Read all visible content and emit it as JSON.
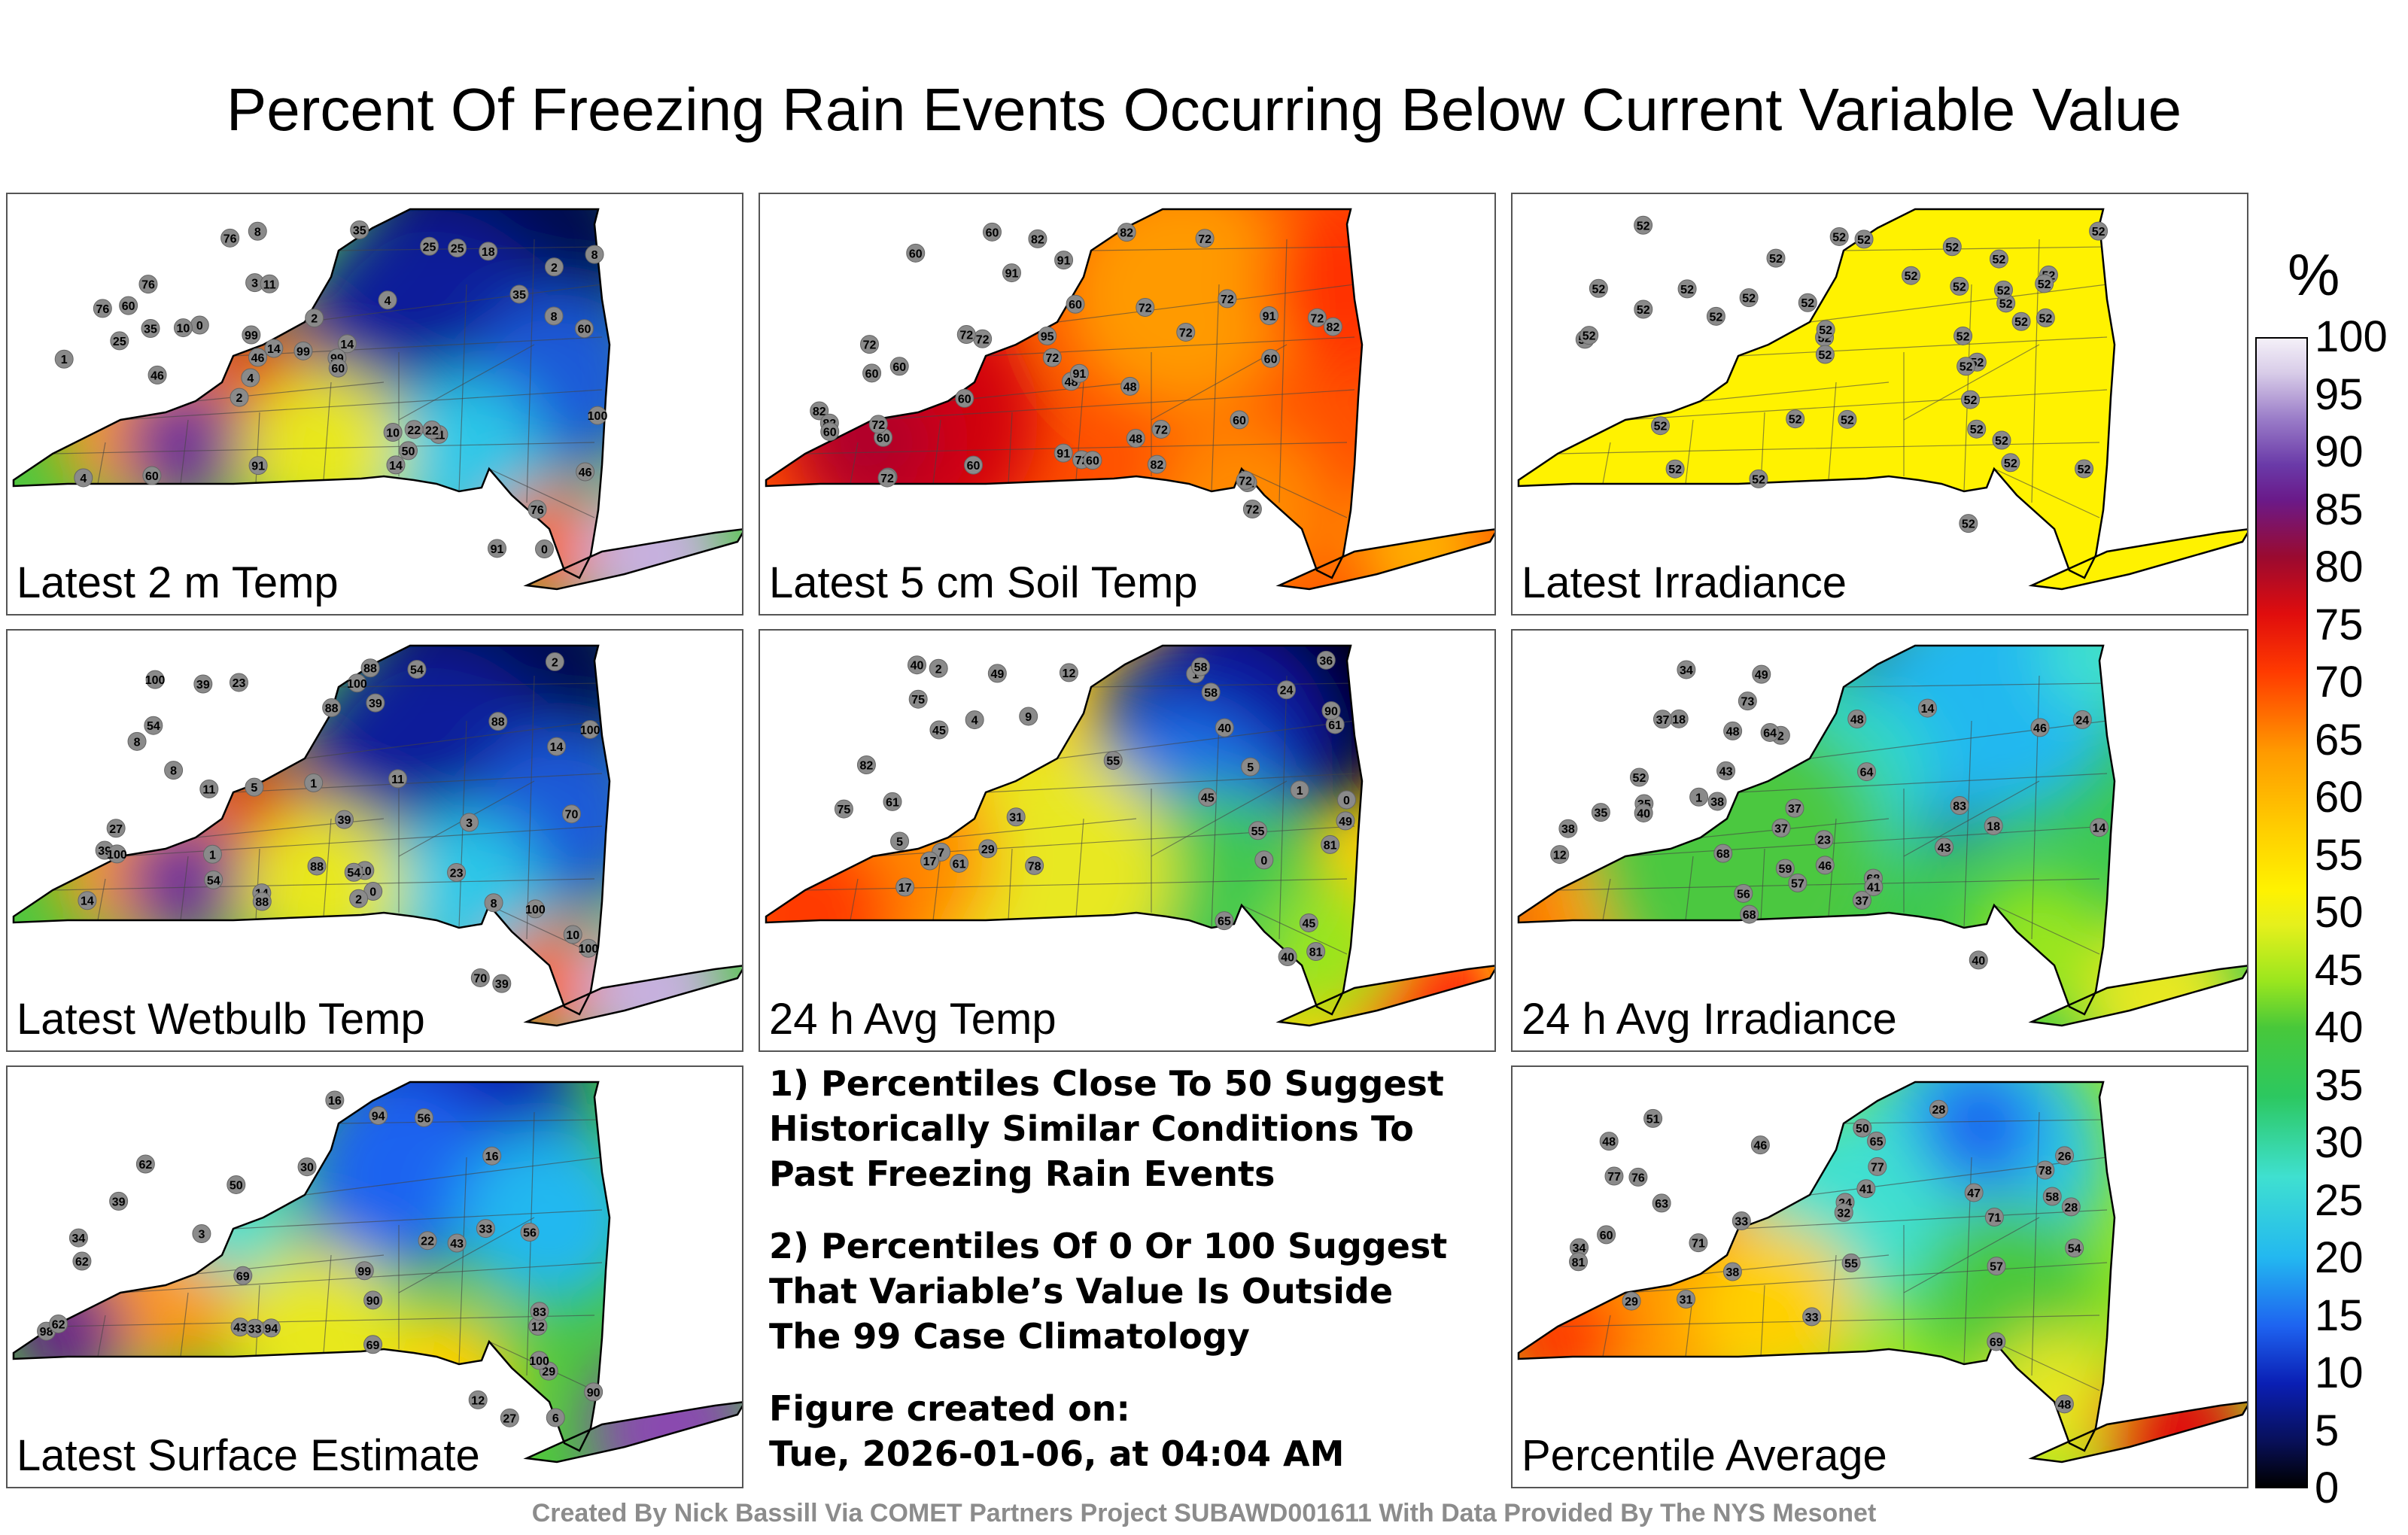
{
  "title": "Percent Of Freezing Rain Events Occurring Below Current Variable Value",
  "panels": [
    {
      "label": "Latest 2 m Temp",
      "fill": "mix1",
      "values": [
        "0",
        "1",
        "2",
        "2",
        "4",
        "3",
        "2",
        "4",
        "0",
        "11",
        "14",
        "11",
        "8",
        "10",
        "8",
        "4",
        "46",
        "76",
        "25",
        "60",
        "91",
        "76",
        "22",
        "10",
        "25",
        "14",
        "60",
        "99",
        "60",
        "35",
        "8",
        "50",
        "18",
        "46",
        "60",
        "25",
        "35",
        "76",
        "14",
        "46",
        "91",
        "22",
        "35",
        "76",
        "100",
        "99",
        "99"
      ]
    },
    {
      "label": "Latest 5 cm Soil Temp",
      "fill": "hot",
      "values": [
        "72",
        "60",
        "72",
        "72",
        "60",
        "60",
        "96",
        "91",
        "72",
        "82",
        "82",
        "48",
        "60",
        "72",
        "72",
        "82",
        "91",
        "91",
        "72",
        "82",
        "82",
        "60",
        "72",
        "72",
        "91",
        "82",
        "60",
        "72",
        "48",
        "72",
        "60",
        "82",
        "91",
        "72",
        "60",
        "48",
        "60",
        "72",
        "95",
        "60",
        "60",
        "60",
        "72",
        "72"
      ]
    },
    {
      "label": "Latest Irradiance",
      "fill": "yellow",
      "values": [
        "52",
        "52",
        "52",
        "52",
        "52",
        "52",
        "52",
        "52",
        "52",
        "52",
        "52",
        "52",
        "52",
        "52",
        "52",
        "52",
        "52",
        "52",
        "52",
        "52",
        "52",
        "52",
        "52",
        "52",
        "52",
        "52",
        "52",
        "52",
        "52",
        "52",
        "52",
        "52",
        "52",
        "52",
        "52",
        "52",
        "52",
        "52",
        "52",
        "52"
      ]
    },
    {
      "label": "Latest Wetbulb Temp",
      "fill": "mix1",
      "values": [
        "0",
        "2",
        "2",
        "1",
        "5",
        "3",
        "10",
        "11",
        "1",
        "14",
        "14",
        "8",
        "10",
        "11",
        "8",
        "54",
        "88",
        "39",
        "100",
        "70",
        "54",
        "23",
        "88",
        "39",
        "54",
        "27",
        "88",
        "100",
        "39",
        "54",
        "8",
        "70",
        "14",
        "39",
        "88",
        "23",
        "39",
        "88",
        "100",
        "100",
        "100",
        "100"
      ]
    },
    {
      "label": "24 h Avg Temp",
      "fill": "mix2",
      "values": [
        "0",
        "1",
        "0",
        "2",
        "1",
        "5",
        "7",
        "4",
        "12",
        "17",
        "24",
        "40",
        "31",
        "9",
        "5",
        "58",
        "81",
        "65",
        "61",
        "75",
        "55",
        "49",
        "45",
        "40",
        "55",
        "61",
        "45",
        "36",
        "17",
        "45",
        "40",
        "29",
        "49",
        "58",
        "61",
        "82",
        "90",
        "78",
        "75",
        "81"
      ]
    },
    {
      "label": "24 h Avg Irradiance",
      "fill": "mix3",
      "values": [
        "38",
        "68",
        "73",
        "35",
        "64",
        "43",
        "14",
        "18",
        "1",
        "18",
        "37",
        "35",
        "23",
        "2",
        "12",
        "37",
        "14",
        "64",
        "83",
        "68",
        "46",
        "37",
        "40",
        "34",
        "43",
        "37",
        "52",
        "41",
        "40",
        "38",
        "57",
        "49",
        "56",
        "48",
        "46",
        "59",
        "68",
        "48",
        "24"
      ]
    },
    {
      "label": "Latest Surface Estimate",
      "fill": "mix4",
      "values": [
        "3",
        "6",
        "12",
        "16",
        "22",
        "27",
        "16",
        "29",
        "33",
        "12",
        "30",
        "43",
        "98",
        "62",
        "99",
        "94",
        "90",
        "62",
        "56",
        "83",
        "69",
        "34",
        "43",
        "39",
        "33",
        "56",
        "62",
        "69",
        "90",
        "94",
        "100",
        "50"
      ]
    },
    {
      "label": "Percentile Average",
      "fill": "mix5",
      "values": [
        "24",
        "28",
        "29",
        "28",
        "47",
        "26",
        "33",
        "31",
        "34",
        "38",
        "51",
        "65",
        "71",
        "55",
        "48",
        "78",
        "69",
        "77",
        "60",
        "57",
        "54",
        "46",
        "41",
        "33",
        "32",
        "48",
        "58",
        "63",
        "71",
        "76",
        "81",
        "77",
        "50"
      ]
    }
  ],
  "notes": [
    [
      "1) Percentiles Close To 50 Suggest",
      "Historically Similar Conditions To",
      "Past Freezing Rain Events"
    ],
    [
      "2) Percentiles Of 0 Or 100 Suggest",
      "That Variable’s Value Is Outside",
      "The 99 Case Climatology"
    ],
    [
      "Figure created on:",
      "Tue, 2026-01-06, at 04:04 AM"
    ]
  ],
  "colorbar": {
    "unit": "%",
    "ticks": [
      "100",
      "95",
      "90",
      "85",
      "80",
      "75",
      "70",
      "65",
      "60",
      "55",
      "50",
      "45",
      "40",
      "35",
      "30",
      "25",
      "20",
      "15",
      "10",
      "5",
      "0"
    ]
  },
  "footer": "Created By Nick Bassill Via COMET Partners Project SUBAWD001611 With Data Provided By The NYS Mesonet"
}
